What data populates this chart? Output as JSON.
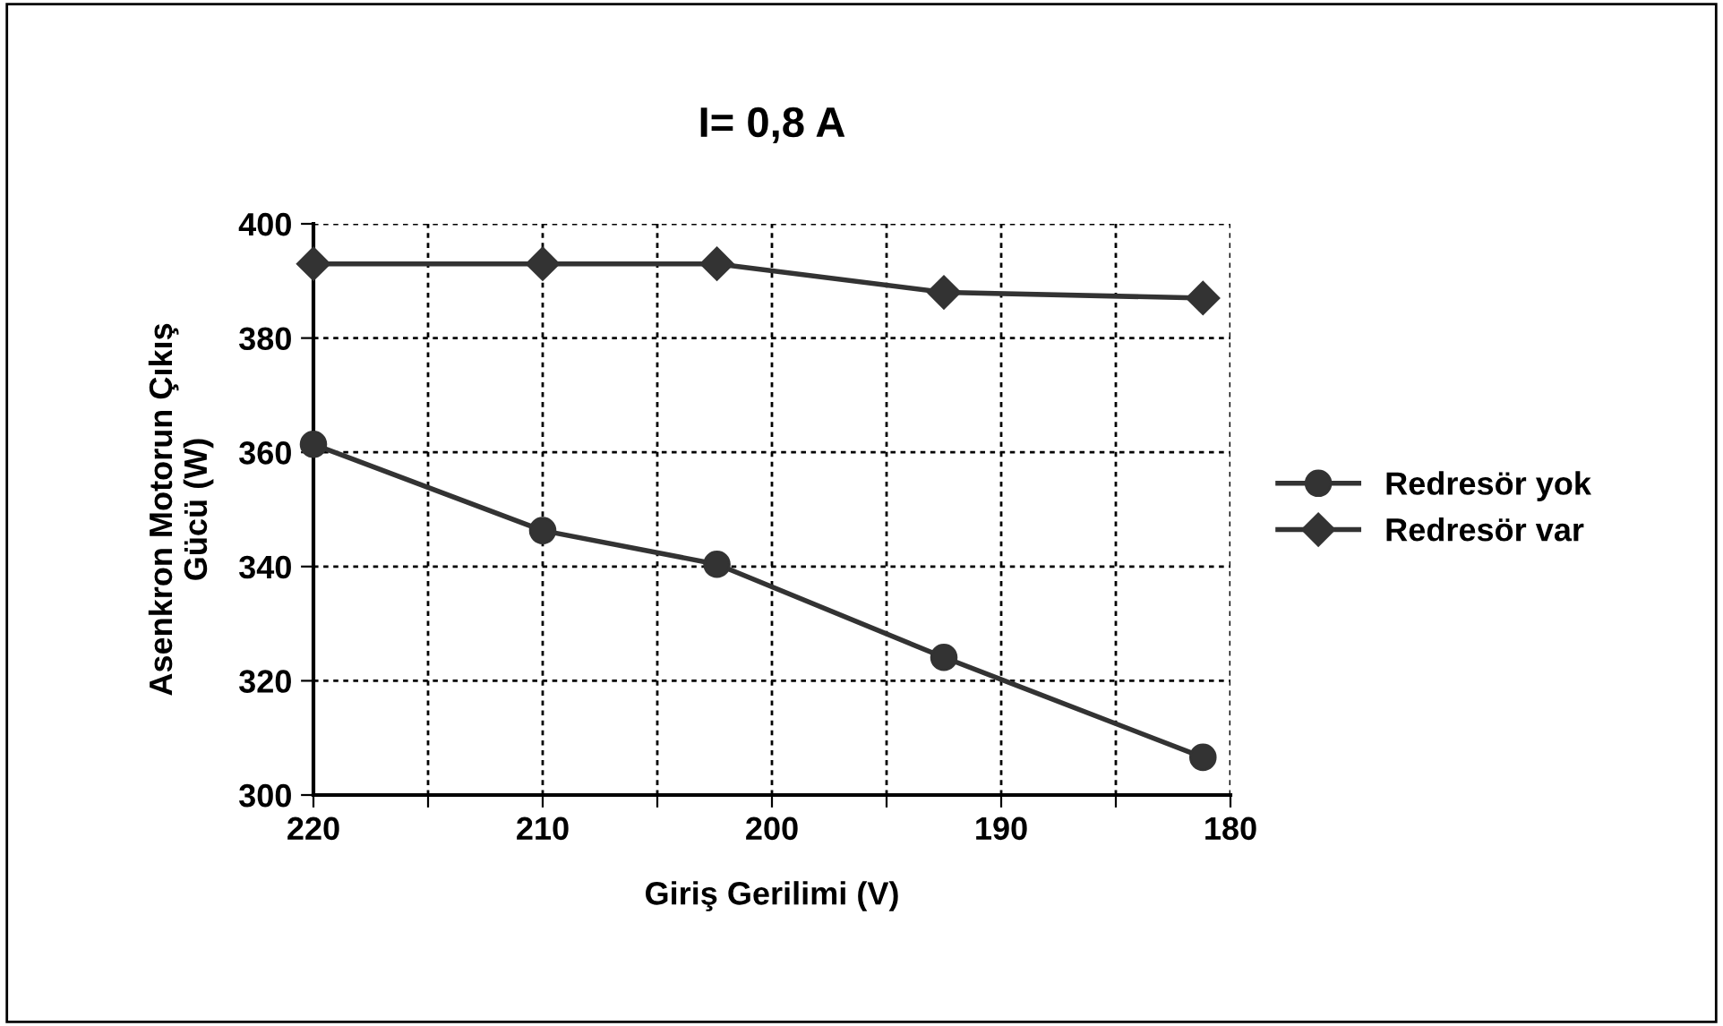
{
  "chart_data": {
    "type": "line",
    "title": "I= 0,8 A",
    "xlabel": "Giriş Gerilimi (V)",
    "ylabel": "Asenkron Motorun Çıkış\nGücü (W)",
    "xlim": [
      220,
      180
    ],
    "xticks": [
      220,
      {
        "value": 215,
        "label": null
      },
      210,
      {
        "value": 205,
        "label": null
      },
      200,
      {
        "value": 195,
        "label": null
      },
      190,
      {
        "value": 185,
        "label": null
      },
      180
    ],
    "ylim": [
      300,
      400
    ],
    "yticks": [
      300,
      320,
      340,
      360,
      380,
      400
    ],
    "grid": true,
    "legend": "right",
    "line_style": "solid",
    "x": [
      220,
      210,
      202.4,
      192.5,
      181.2
    ],
    "series": [
      {
        "name": "Redresör yok",
        "color": "#333333",
        "marker": "circle",
        "values": [
          361.4,
          346.3,
          340.4,
          324.1,
          306.6
        ]
      },
      {
        "name": "Redresör var",
        "color": "#333333",
        "marker": "diamond",
        "values": [
          393,
          393,
          393,
          388,
          387
        ]
      }
    ]
  }
}
